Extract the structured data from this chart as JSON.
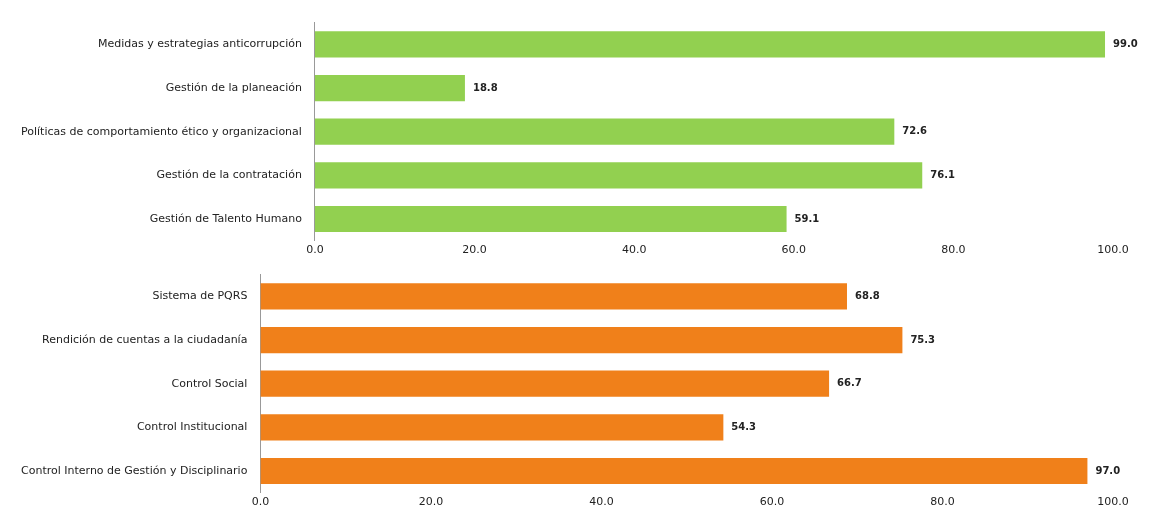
{
  "chart_data": [
    {
      "type": "bar",
      "orientation": "horizontal",
      "categories": [
        "Medidas y estrategias anticorrupción",
        "Gestión de la planeación",
        "Políticas de comportamiento ético y organizacional",
        "Gestión de la contratación",
        "Gestión de Talento Humano"
      ],
      "values": [
        99.0,
        18.8,
        72.6,
        76.1,
        59.1
      ],
      "value_labels": [
        "99.0",
        "18.8",
        "72.6",
        "76.1",
        "59.1"
      ],
      "color": "#92d050",
      "xlim": [
        0,
        100
      ],
      "xticks": [
        {
          "value": 0,
          "label": "0.0"
        },
        {
          "value": 20,
          "label": "20.0"
        },
        {
          "value": 40,
          "label": "40.0"
        },
        {
          "value": 60,
          "label": "60.0"
        },
        {
          "value": 80,
          "label": "80.0"
        },
        {
          "value": 100,
          "label": "100.0"
        }
      ],
      "grid": false,
      "legend": false
    },
    {
      "type": "bar",
      "orientation": "horizontal",
      "categories": [
        "Sistema de PQRS",
        "Rendición de cuentas a la ciudadanía",
        "Control Social",
        "Control Institucional",
        "Control Interno de Gestión y Disciplinario"
      ],
      "values": [
        68.8,
        75.3,
        66.7,
        54.3,
        97.0
      ],
      "value_labels": [
        "68.8",
        "75.3",
        "66.7",
        "54.3",
        "97.0"
      ],
      "color": "#f0801a",
      "xlim": [
        0,
        100
      ],
      "xticks": [
        {
          "value": 0,
          "label": "0.0"
        },
        {
          "value": 20,
          "label": "20.0"
        },
        {
          "value": 40,
          "label": "40.0"
        },
        {
          "value": 60,
          "label": "60.0"
        },
        {
          "value": 80,
          "label": "80.0"
        },
        {
          "value": 100,
          "label": "100.0"
        }
      ],
      "grid": false,
      "legend": false
    }
  ]
}
